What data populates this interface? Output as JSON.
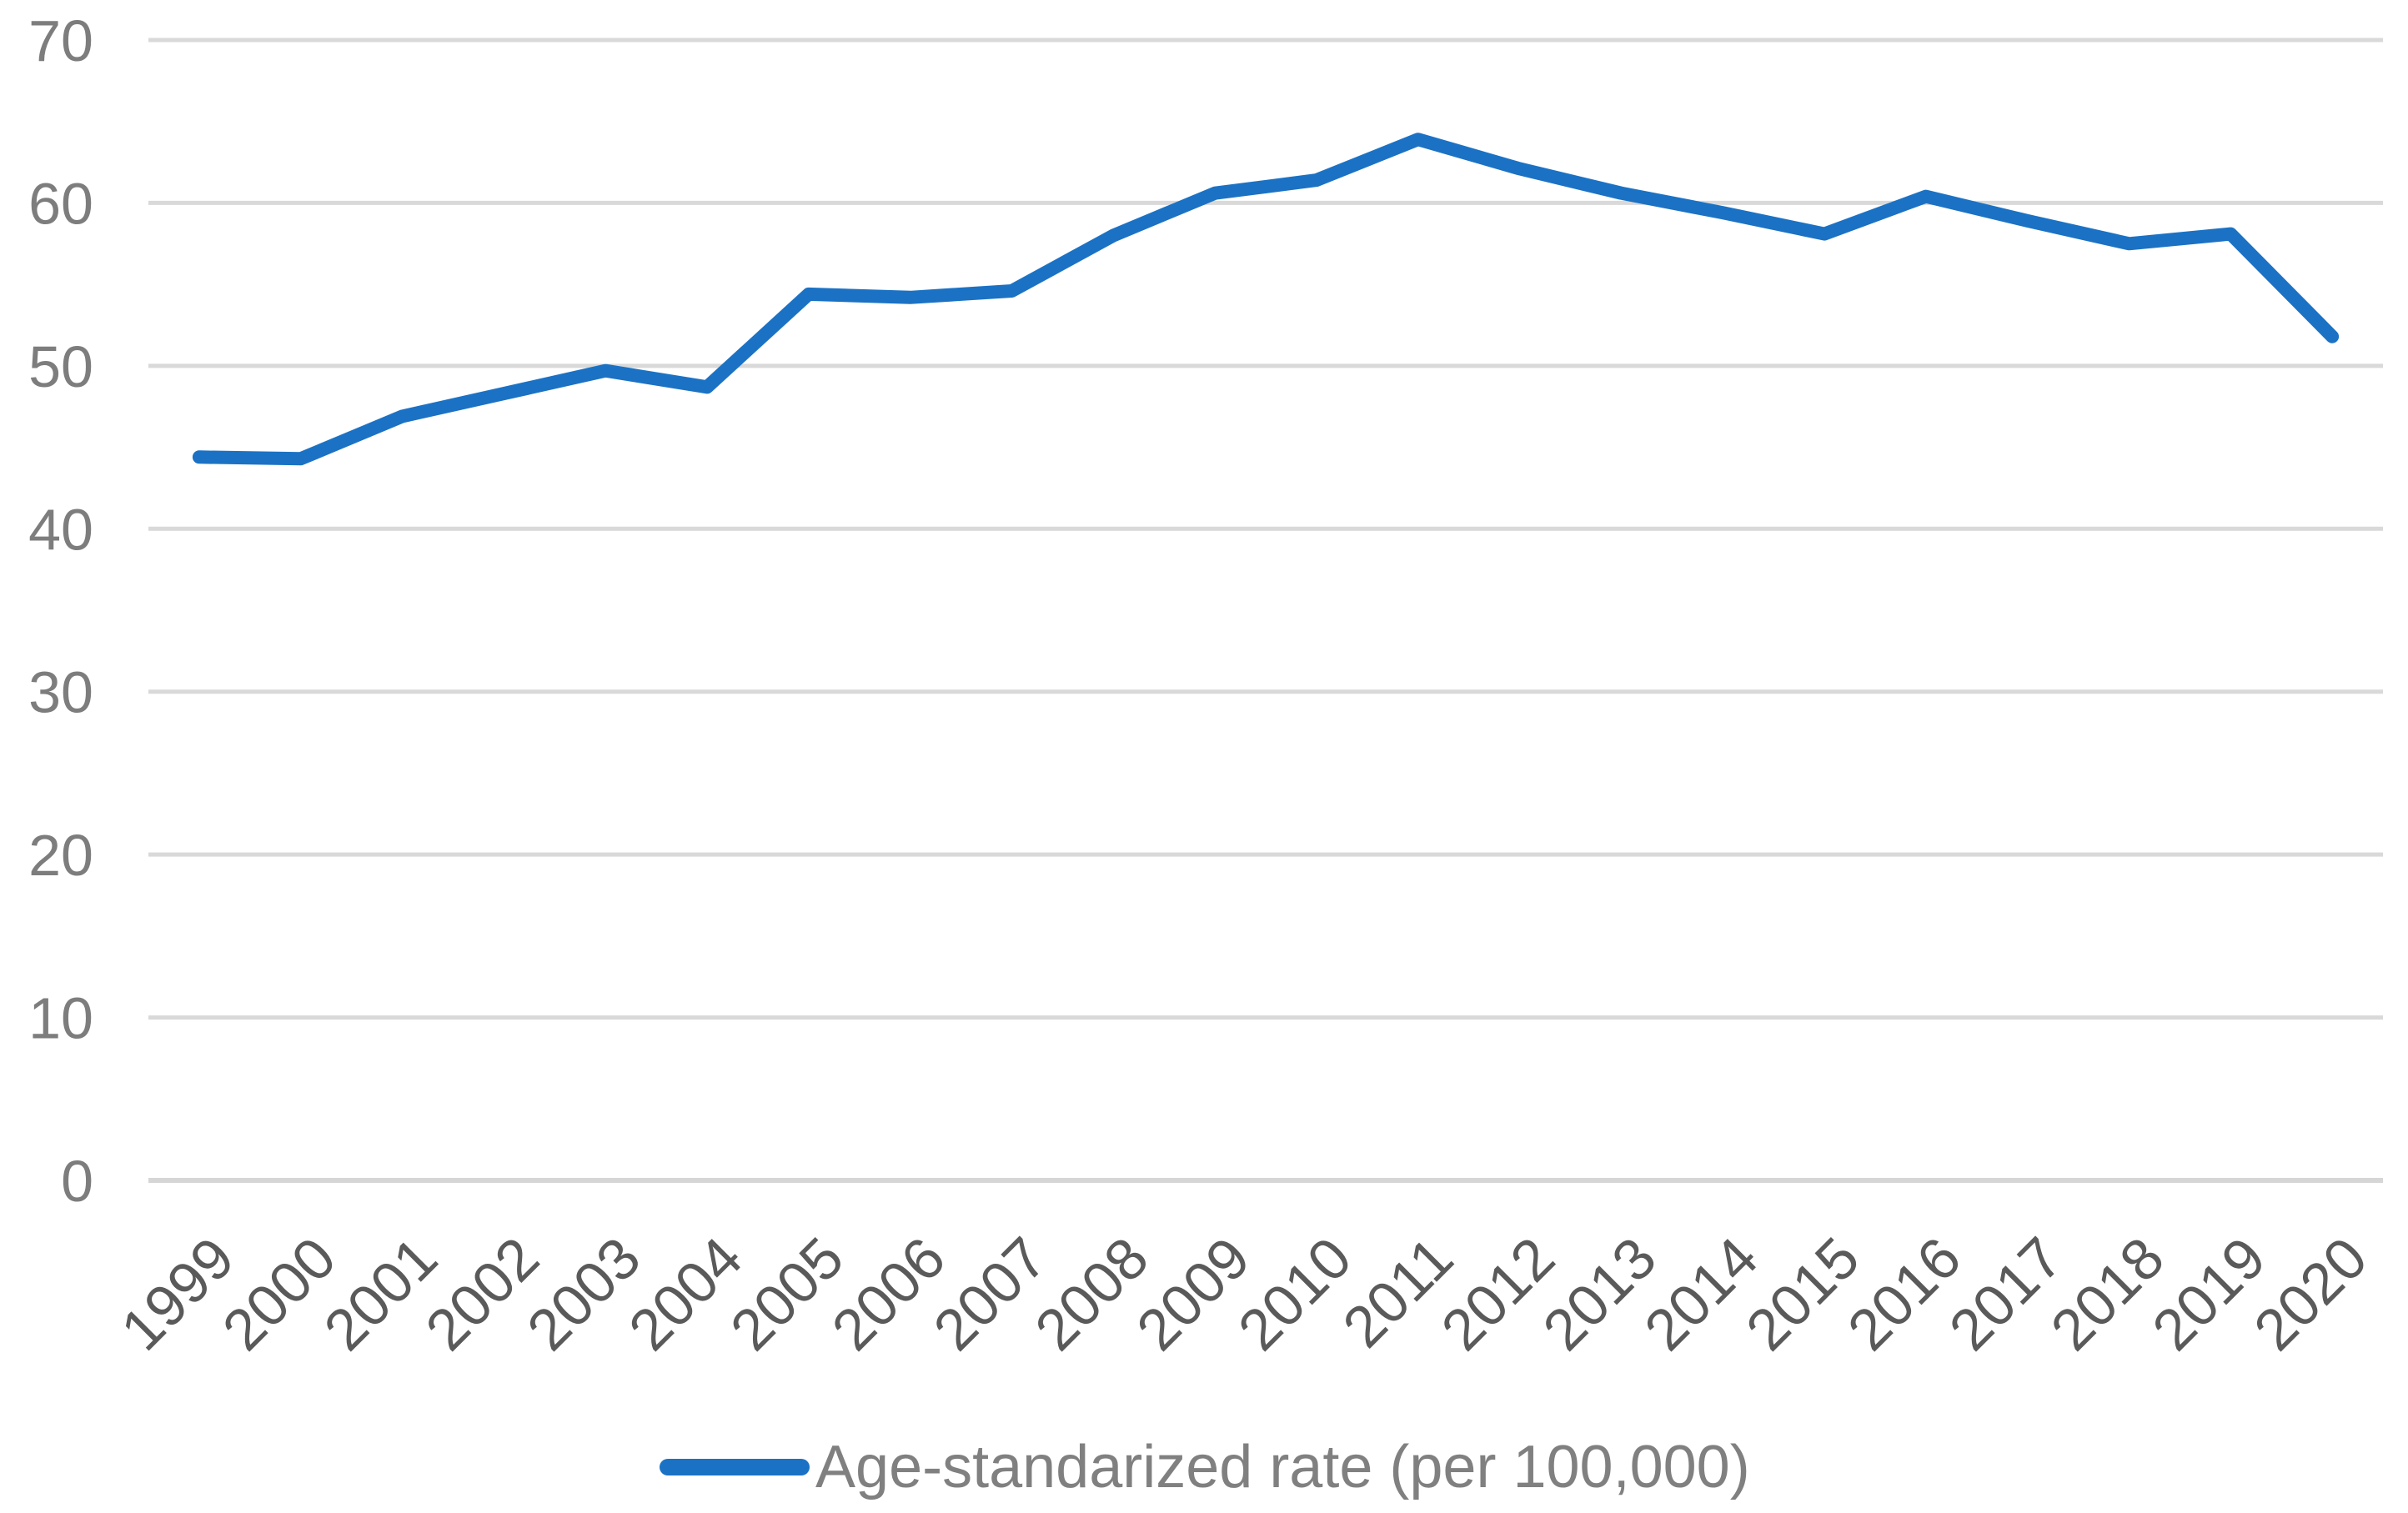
{
  "chart_data": {
    "type": "line",
    "title": "",
    "xlabel": "",
    "ylabel": "",
    "categories": [
      "1999",
      "2000",
      "2001",
      "2002",
      "2003",
      "2004",
      "2005",
      "2006",
      "2007",
      "2008",
      "2009",
      "2010",
      "2011",
      "2012",
      "2013",
      "2014",
      "2015",
      "2016",
      "2017",
      "2018",
      "2019",
      "2020"
    ],
    "series": [
      {
        "name": "Age-standarized rate (per 100,000)",
        "values": [
          44.4,
          44.3,
          46.9,
          48.3,
          49.7,
          48.7,
          54.4,
          54.2,
          54.6,
          58.0,
          60.6,
          61.4,
          63.9,
          62.1,
          60.6,
          59.4,
          58.1,
          60.4,
          58.9,
          57.5,
          58.1,
          51.8
        ]
      }
    ],
    "ylim": [
      0,
      70
    ],
    "yticks": [
      0,
      10,
      20,
      30,
      40,
      50,
      60,
      70
    ],
    "grid": true,
    "legend_position": "bottom",
    "x_tick_rotation_deg": -45,
    "colors": {
      "line": "#1B72C4",
      "gridline": "#D9D9D9",
      "axis_line": "#D6D6D6",
      "ytick_text": "#7D7D7D",
      "xtick_text": "#5A5A5A",
      "legend_text": "#808080",
      "background": "#FFFFFF"
    }
  },
  "legend": {
    "label": "Age-standarized rate (per 100,000)"
  }
}
